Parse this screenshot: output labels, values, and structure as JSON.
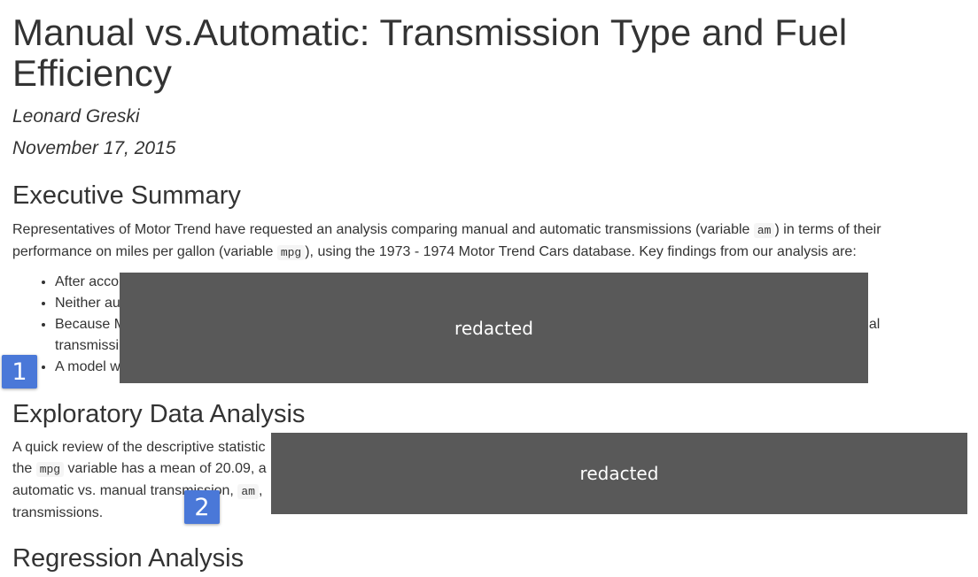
{
  "document": {
    "title": "Manual vs.Automatic: Transmission Type and Fuel Efficiency",
    "author": "Leonard Greski",
    "date": "November 17, 2015"
  },
  "executive_summary": {
    "heading": "Executive Summary",
    "para_text_1": "Representatives of Motor Trend have requested an analysis comparing manual and automatic transmissions (variable ",
    "para_code_1": "am",
    "para_text_2": ") in terms of their performance on miles per gallon (variable ",
    "para_code_2": "mpg",
    "para_text_3": "), using the 1973 - 1974 Motor Trend Cars database. Key findings from our analysis are:",
    "findings": [
      {
        "visible_text": "After acco"
      },
      {
        "visible_text": "Neither au"
      },
      {
        "visible_text": "Because M",
        "tail_text": "ual",
        "second_line": "transmissi"
      },
      {
        "visible_text": "A model w"
      }
    ]
  },
  "eda": {
    "heading": "Exploratory Data Analysis",
    "line1": "A quick review of the descriptive statistic",
    "line2_pre": "the ",
    "line2_code": "mpg",
    "line2_post": " variable has a mean of 20.09, a",
    "line3_pre": "automatic vs. manual transmission, ",
    "line3_code": "am",
    "line3_post": ",",
    "line4": "transmissions."
  },
  "regression": {
    "heading": "Regression Analysis"
  },
  "redactions": [
    {
      "label": "redacted"
    },
    {
      "label": "redacted"
    }
  ],
  "markers": [
    {
      "label": "1"
    },
    {
      "label": "2"
    }
  ],
  "colors": {
    "text": "#333333",
    "redaction": "#595959",
    "marker": "#4a78d8"
  }
}
